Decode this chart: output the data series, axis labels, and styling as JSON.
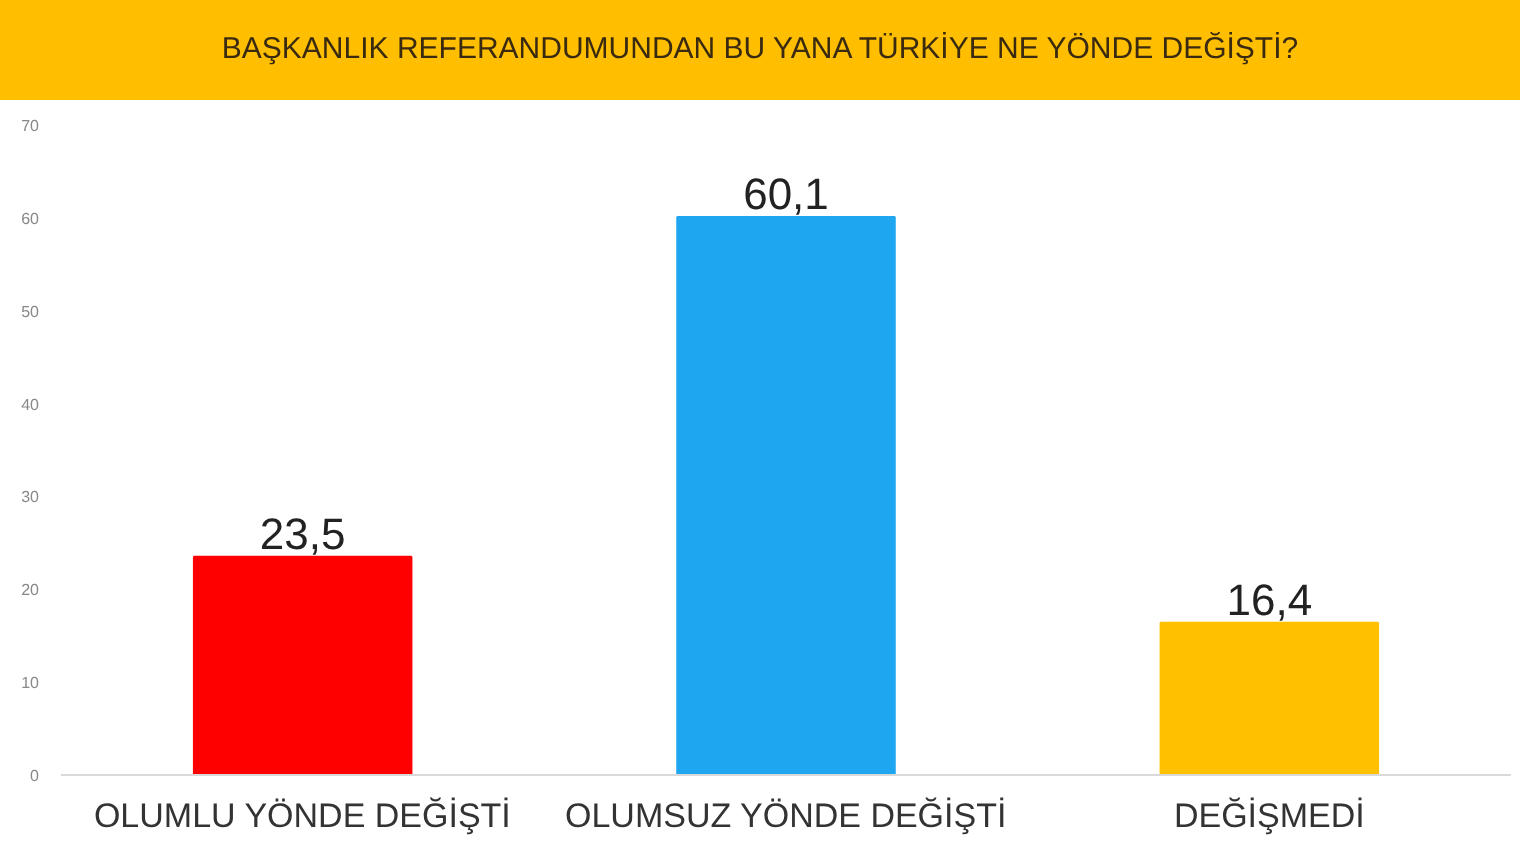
{
  "chart_data": {
    "type": "bar",
    "title": "BAŞKANLIK REFERANDUMUNDAN BU YANA TÜRKİYE NE YÖNDE DEĞİŞTİ?",
    "categories": [
      "OLUMLU YÖNDE DEĞİŞTİ",
      "OLUMSUZ YÖNDE DEĞİŞTİ",
      "DEĞİŞMEDİ"
    ],
    "values": [
      23.5,
      60.1,
      16.4
    ],
    "value_labels": [
      "23,5",
      "60,1",
      "16,4"
    ],
    "colors": [
      "#ff0000",
      "#1ea7f0",
      "#ffc000"
    ],
    "ylim": [
      0,
      70
    ],
    "yticks": [
      0,
      10,
      20,
      30,
      40,
      50,
      60,
      70
    ],
    "grid": false
  }
}
